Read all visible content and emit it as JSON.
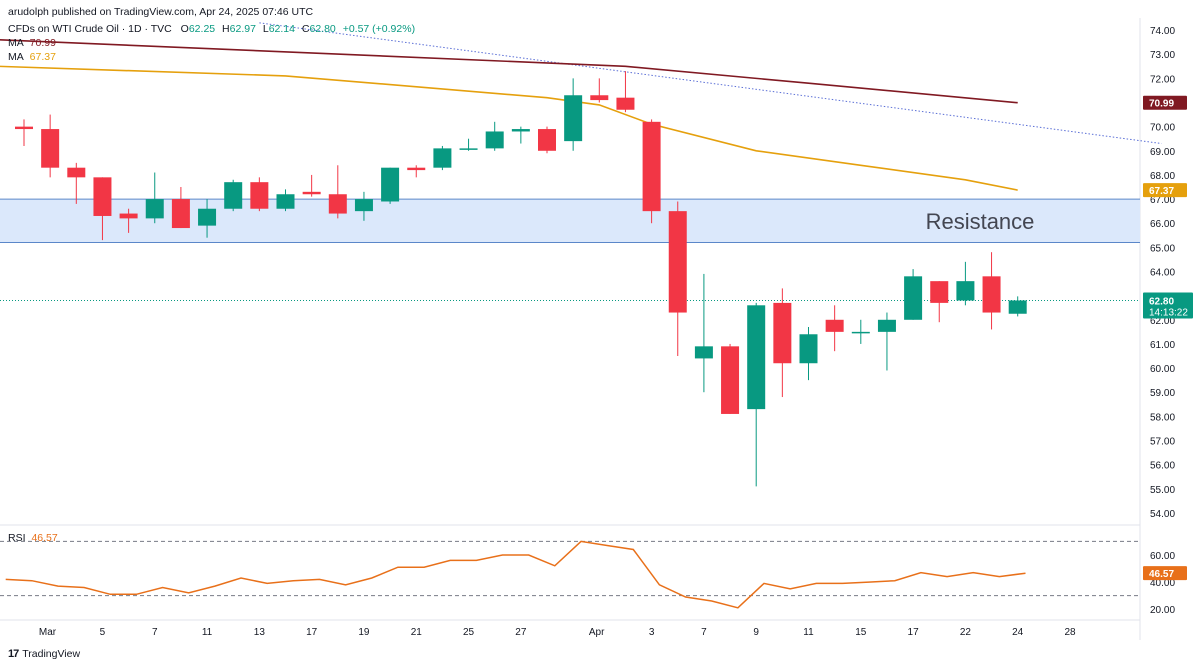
{
  "header": {
    "published": "arudolph published on TradingView.com, Apr 24, 2025 07:46 UTC",
    "symbol": "CFDs on WTI Crude Oil · 1D · TVC",
    "ohlc": {
      "o_label": "O",
      "o": "62.25",
      "h_label": "H",
      "h": "62.97",
      "l_label": "L",
      "l": "62.14",
      "c_label": "C",
      "c": "62.80",
      "change": "+0.57 (+0.92%)"
    },
    "ma1_label": "MA",
    "ma1_value": "70.99",
    "ma2_label": "MA",
    "ma2_value": "67.37"
  },
  "footer": {
    "brand": "TradingView",
    "logo": "tv-logo-icon"
  },
  "colors": {
    "up": "#089981",
    "down": "#f23645",
    "ma1": "#801922",
    "ma2": "#e5a00d",
    "rsi": "#e8701a",
    "trendline": "#5b6fd6",
    "resistance_fill": "#dbe8fb",
    "resistance_border": "#5b87c9"
  },
  "chart_data": {
    "type": "candlestick",
    "title": "CFDs on WTI Crude Oil",
    "timeframe": "1D",
    "x_ticks": [
      "Mar",
      "5",
      "7",
      "11",
      "13",
      "17",
      "19",
      "21",
      "25",
      "27",
      "Apr",
      "3",
      "7",
      "9",
      "11",
      "15",
      "17",
      "22",
      "24",
      "28"
    ],
    "y_ticks": [
      "74.00",
      "73.00",
      "72.00",
      "71.00",
      "70.00",
      "69.00",
      "68.00",
      "67.00",
      "66.00",
      "65.00",
      "64.00",
      "63.00",
      "62.00",
      "61.00",
      "60.00",
      "59.00",
      "58.00",
      "57.00",
      "56.00",
      "55.00",
      "54.00"
    ],
    "ylim": [
      53.5,
      74.5
    ],
    "candles": [
      {
        "date": "Feb 28",
        "o": 70.0,
        "h": 70.3,
        "l": 69.2,
        "c": 69.9
      },
      {
        "date": "Mar 3",
        "o": 69.9,
        "h": 70.5,
        "l": 67.9,
        "c": 68.3
      },
      {
        "date": "Mar 4",
        "o": 68.3,
        "h": 68.5,
        "l": 66.8,
        "c": 67.9
      },
      {
        "date": "Mar 5",
        "o": 67.9,
        "h": 67.9,
        "l": 65.3,
        "c": 66.3
      },
      {
        "date": "Mar 6",
        "o": 66.4,
        "h": 66.6,
        "l": 65.6,
        "c": 66.2
      },
      {
        "date": "Mar 7",
        "o": 66.2,
        "h": 68.1,
        "l": 66.0,
        "c": 67.0
      },
      {
        "date": "Mar 10",
        "o": 67.0,
        "h": 67.5,
        "l": 65.8,
        "c": 65.8
      },
      {
        "date": "Mar 11",
        "o": 65.9,
        "h": 67.0,
        "l": 65.4,
        "c": 66.6
      },
      {
        "date": "Mar 12",
        "o": 66.6,
        "h": 67.8,
        "l": 66.5,
        "c": 67.7
      },
      {
        "date": "Mar 13",
        "o": 67.7,
        "h": 67.9,
        "l": 66.5,
        "c": 66.6
      },
      {
        "date": "Mar 14",
        "o": 66.6,
        "h": 67.4,
        "l": 66.5,
        "c": 67.2
      },
      {
        "date": "Mar 17",
        "o": 67.3,
        "h": 68.0,
        "l": 67.1,
        "c": 67.2
      },
      {
        "date": "Mar 18",
        "o": 67.2,
        "h": 68.4,
        "l": 66.2,
        "c": 66.4
      },
      {
        "date": "Mar 19",
        "o": 66.5,
        "h": 67.3,
        "l": 66.1,
        "c": 67.0
      },
      {
        "date": "Mar 20",
        "o": 66.9,
        "h": 68.3,
        "l": 66.8,
        "c": 68.3
      },
      {
        "date": "Mar 21",
        "o": 68.3,
        "h": 68.4,
        "l": 67.9,
        "c": 68.2
      },
      {
        "date": "Mar 24",
        "o": 68.3,
        "h": 69.2,
        "l": 68.2,
        "c": 69.1
      },
      {
        "date": "Mar 25",
        "o": 69.1,
        "h": 69.5,
        "l": 69.0,
        "c": 69.1
      },
      {
        "date": "Mar 26",
        "o": 69.1,
        "h": 70.2,
        "l": 69.0,
        "c": 69.8
      },
      {
        "date": "Mar 27",
        "o": 69.8,
        "h": 70.0,
        "l": 69.3,
        "c": 69.9
      },
      {
        "date": "Mar 28",
        "o": 69.9,
        "h": 70.0,
        "l": 68.9,
        "c": 69.0
      },
      {
        "date": "Mar 31",
        "o": 69.4,
        "h": 72.0,
        "l": 69.0,
        "c": 71.3
      },
      {
        "date": "Apr 1",
        "o": 71.3,
        "h": 72.0,
        "l": 71.0,
        "c": 71.1
      },
      {
        "date": "Apr 2",
        "o": 71.2,
        "h": 72.3,
        "l": 70.6,
        "c": 70.7
      },
      {
        "date": "Apr 3",
        "o": 70.2,
        "h": 70.3,
        "l": 66.0,
        "c": 66.5
      },
      {
        "date": "Apr 4",
        "o": 66.5,
        "h": 66.9,
        "l": 60.5,
        "c": 62.3
      },
      {
        "date": "Apr 7",
        "o": 60.4,
        "h": 63.9,
        "l": 59.0,
        "c": 60.9
      },
      {
        "date": "Apr 8",
        "o": 60.9,
        "h": 61.0,
        "l": 58.1,
        "c": 58.1
      },
      {
        "date": "Apr 9",
        "o": 58.3,
        "h": 62.7,
        "l": 55.1,
        "c": 62.6
      },
      {
        "date": "Apr 10",
        "o": 62.7,
        "h": 63.3,
        "l": 58.8,
        "c": 60.2
      },
      {
        "date": "Apr 11",
        "o": 60.2,
        "h": 61.7,
        "l": 59.5,
        "c": 61.4
      },
      {
        "date": "Apr 14",
        "o": 62.0,
        "h": 62.6,
        "l": 60.7,
        "c": 61.5
      },
      {
        "date": "Apr 15",
        "o": 61.5,
        "h": 62.0,
        "l": 61.0,
        "c": 61.5
      },
      {
        "date": "Apr 16",
        "o": 61.5,
        "h": 62.3,
        "l": 59.9,
        "c": 62.0
      },
      {
        "date": "Apr 17",
        "o": 62.0,
        "h": 64.1,
        "l": 62.0,
        "c": 63.8
      },
      {
        "date": "Apr 21",
        "o": 63.6,
        "h": 63.6,
        "l": 61.9,
        "c": 62.7
      },
      {
        "date": "Apr 22",
        "o": 62.8,
        "h": 64.4,
        "l": 62.6,
        "c": 63.6
      },
      {
        "date": "Apr 23",
        "o": 63.8,
        "h": 64.8,
        "l": 61.6,
        "c": 62.3
      },
      {
        "date": "Apr 24",
        "o": 62.25,
        "h": 62.97,
        "l": 62.14,
        "c": 62.8
      }
    ],
    "ma_long": {
      "name": "MA 70.99",
      "points": [
        [
          -1,
          73.6
        ],
        [
          23,
          72.5
        ],
        [
          30,
          71.8
        ],
        [
          38,
          70.99
        ]
      ]
    },
    "ma_short": {
      "name": "MA 67.37",
      "points": [
        [
          -1,
          72.5
        ],
        [
          10,
          72.1
        ],
        [
          20,
          71.2
        ],
        [
          22,
          70.9
        ],
        [
          24,
          70.1
        ],
        [
          28,
          69.0
        ],
        [
          32,
          68.4
        ],
        [
          36,
          67.8
        ],
        [
          38,
          67.37
        ]
      ]
    },
    "trendline": {
      "points": [
        [
          9,
          74.3
        ],
        [
          43.5,
          69.3
        ]
      ]
    },
    "resistance": {
      "label": "Resistance",
      "low": 65.2,
      "high": 67.0
    },
    "last_price": {
      "value": "62.80",
      "countdown": "14:13:22"
    },
    "price_badges": [
      {
        "value": "70.99",
        "color": "#801922"
      },
      {
        "value": "67.37",
        "color": "#e5a00d"
      }
    ],
    "rsi": {
      "label": "RSI",
      "value": "46.57",
      "y_ticks": [
        "60.00",
        "40.00",
        "20.00"
      ],
      "ylim": [
        12,
        74
      ],
      "levels": [
        70,
        30
      ],
      "values": [
        42,
        41,
        37,
        36,
        31,
        31,
        36,
        32,
        37,
        43,
        39,
        41,
        42,
        38,
        43,
        51,
        51,
        56,
        56,
        60,
        60,
        52,
        70,
        67,
        64,
        38,
        29,
        26,
        21,
        39,
        35,
        39,
        39,
        40,
        41,
        47,
        44,
        47,
        44,
        46.57
      ]
    }
  }
}
